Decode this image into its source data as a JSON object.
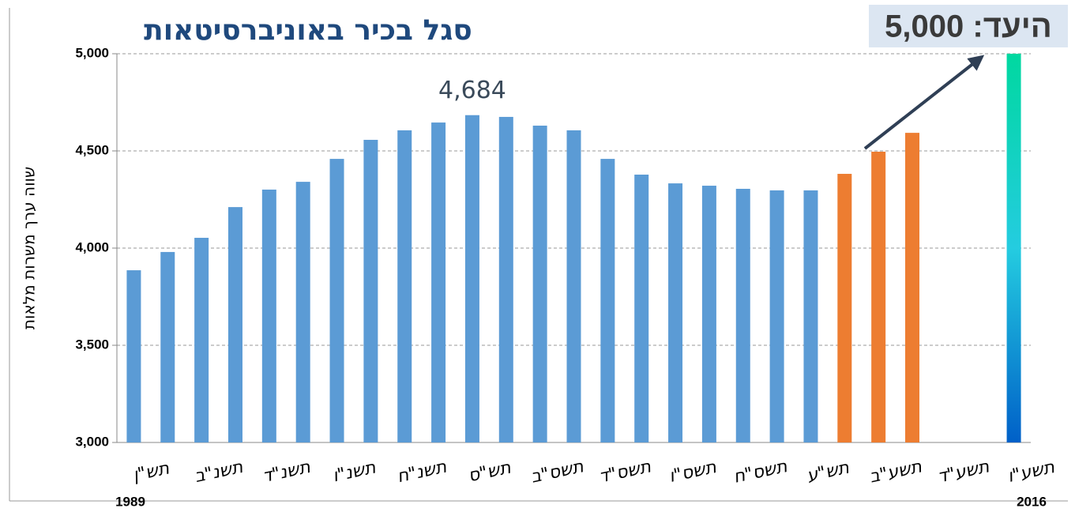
{
  "chart_data": {
    "type": "bar",
    "title": "סגל בכיר באוניברסיטאות",
    "y_label": "שווה ערך משרות מלאות",
    "target_label": "היעד: 5,000",
    "start_year": "1989",
    "end_year": "2016",
    "categories": [
      "תש\"ן",
      null,
      "תשנ\"ב",
      null,
      "תשנ\"ד",
      null,
      "תשנ\"ו",
      null,
      "תשנ\"ח",
      null,
      "תש\"ס",
      null,
      "תשס\"ב",
      null,
      "תשס\"ד",
      null,
      "תשס\"ו",
      null,
      "תשס\"ח",
      null,
      "תש\"ע",
      null,
      "תשע\"ב",
      null,
      "תשע\"ד",
      null,
      "תשע\"ו"
    ],
    "values": [
      3886,
      3980,
      4053,
      4211,
      4301,
      4341,
      4459,
      4557,
      4606,
      4646,
      4684,
      4675,
      4630,
      4606,
      4459,
      4378,
      4333,
      4321,
      4305,
      4297,
      4297,
      4382,
      4496,
      4593,
      null,
      null,
      5000
    ],
    "value_labels": [
      null,
      null,
      null,
      null,
      null,
      null,
      null,
      null,
      null,
      null,
      "4,684",
      null,
      null,
      null,
      null,
      null,
      null,
      null,
      null,
      null,
      null,
      null,
      null,
      null,
      null,
      null,
      null
    ],
    "colors": [
      "#5b9bd5",
      "#5b9bd5",
      "#5b9bd5",
      "#5b9bd5",
      "#5b9bd5",
      "#5b9bd5",
      "#5b9bd5",
      "#5b9bd5",
      "#5b9bd5",
      "#5b9bd5",
      "#5b9bd5",
      "#5b9bd5",
      "#5b9bd5",
      "#5b9bd5",
      "#5b9bd5",
      "#5b9bd5",
      "#5b9bd5",
      "#5b9bd5",
      "#5b9bd5",
      "#5b9bd5",
      "#5b9bd5",
      "#ed7d31",
      "#ed7d31",
      "#ed7d31",
      null,
      null,
      "target"
    ],
    "target_colors": [
      "#00d8a0",
      "#24cce0",
      "#0060c8"
    ],
    "ylim": [
      3000,
      5000
    ],
    "yticks": [
      {
        "value": 3000,
        "label": "3,000"
      },
      {
        "value": 3500,
        "label": "3,500"
      },
      {
        "value": 4000,
        "label": "4,000"
      },
      {
        "value": 4500,
        "label": "4,500"
      },
      {
        "value": 5000,
        "label": "5,000"
      }
    ],
    "grid": true
  }
}
